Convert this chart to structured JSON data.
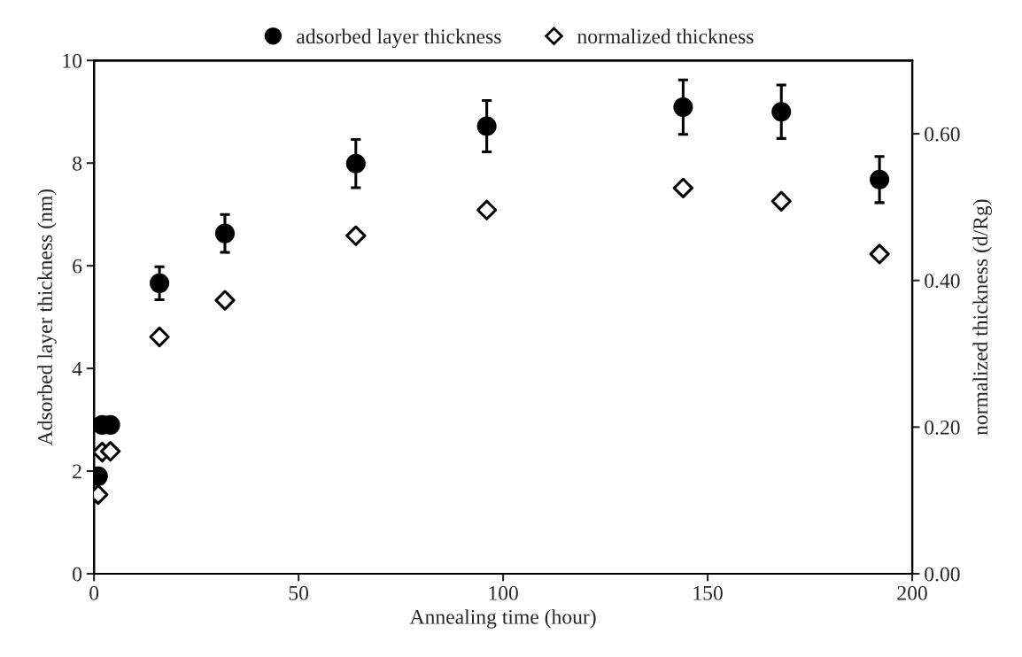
{
  "chart_data": {
    "type": "scatter",
    "xlabel": "Annealing time (hour)",
    "ylabel": "Adsorbed layer thickness (nm)",
    "y2label": "normalized thickness (d/Rg)",
    "x": [
      1,
      2,
      4,
      16,
      32,
      64,
      96,
      144,
      168,
      192
    ],
    "series": [
      {
        "name": "adsorbed layer thickness",
        "color": "#000000",
        "marker": "circle",
        "values": [
          1.9,
          2.9,
          2.9,
          5.66,
          6.63,
          7.99,
          8.72,
          9.09,
          9.0,
          7.68
        ],
        "errors": [
          null,
          null,
          null,
          0.32,
          0.37,
          0.47,
          0.5,
          0.53,
          0.52,
          0.45
        ]
      },
      {
        "name": "normalized thickness",
        "color": "#000000",
        "marker": "diamond",
        "axis": "y2",
        "values": [
          0.108,
          0.166,
          0.167,
          0.323,
          0.373,
          0.461,
          0.496,
          0.526,
          0.508,
          0.436
        ]
      }
    ],
    "xlim": [
      0,
      200
    ],
    "xticks": [
      0,
      50,
      100,
      150,
      200
    ],
    "ylim": [
      0,
      10
    ],
    "yticks": [
      0,
      2,
      4,
      6,
      8,
      10
    ],
    "y2lim": [
      0,
      0.7
    ],
    "y2ticks": [
      {
        "value": 0,
        "label": "0.00"
      },
      {
        "value": 0.2,
        "label": "0.20"
      },
      {
        "value": 0.4,
        "label": "0.40"
      },
      {
        "value": 0.6,
        "label": "0.60"
      }
    ],
    "legend": "top",
    "grid": false
  }
}
